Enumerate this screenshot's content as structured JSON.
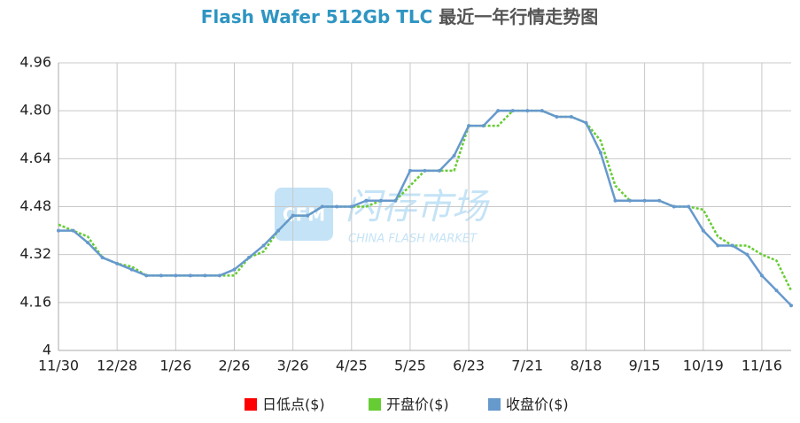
{
  "chart_data": {
    "type": "line",
    "title": "Flash Wafer 512Gb TLC",
    "subtitle": "最近一年行情走势图",
    "watermark": {
      "logo": "CFM",
      "name": "闪存市场",
      "name_en": "CHINA FLASH MARKET"
    },
    "categories": [
      "11/30",
      null,
      null,
      null,
      "12/28",
      null,
      null,
      null,
      "1/26",
      null,
      null,
      null,
      "2/26",
      null,
      null,
      null,
      "3/26",
      null,
      null,
      null,
      "4/25",
      null,
      null,
      null,
      "5/25",
      null,
      null,
      null,
      "6/23",
      null,
      null,
      null,
      "7/21",
      null,
      null,
      null,
      "8/18",
      null,
      null,
      null,
      "9/15",
      null,
      null,
      null,
      "10/19",
      null,
      null,
      null,
      "11/16",
      null,
      null
    ],
    "series": [
      {
        "name": "日低点($)",
        "color": "#ff0000",
        "values": [
          null,
          null,
          null,
          null,
          null,
          null,
          null,
          null,
          null,
          null,
          null,
          null,
          null,
          null,
          null,
          null,
          null,
          null,
          null,
          null,
          null,
          null,
          null,
          null,
          null,
          null,
          null,
          null,
          null,
          null,
          null,
          null,
          null,
          null,
          null,
          null,
          null,
          null,
          null,
          null,
          null,
          null,
          null,
          null,
          null,
          null,
          null,
          null,
          null,
          null,
          null
        ]
      },
      {
        "name": "开盘价($)",
        "color": "#66cc33",
        "values": [
          4.42,
          4.4,
          4.38,
          4.31,
          4.29,
          4.28,
          4.25,
          4.25,
          4.25,
          4.25,
          4.25,
          4.25,
          4.25,
          4.31,
          4.33,
          4.4,
          4.45,
          4.45,
          4.48,
          4.48,
          4.48,
          4.48,
          4.5,
          4.5,
          4.55,
          4.6,
          4.6,
          4.6,
          4.75,
          4.75,
          4.75,
          4.8,
          4.8,
          4.8,
          4.78,
          4.78,
          4.76,
          4.7,
          4.55,
          4.5,
          4.5,
          4.5,
          4.48,
          4.48,
          4.47,
          4.38,
          4.35,
          4.35,
          4.32,
          4.3,
          4.2
        ]
      },
      {
        "name": "收盘价($)",
        "color": "#6699cc",
        "values": [
          4.4,
          4.4,
          4.36,
          4.31,
          4.29,
          4.27,
          4.25,
          4.25,
          4.25,
          4.25,
          4.25,
          4.25,
          4.27,
          4.31,
          4.35,
          4.4,
          4.45,
          4.45,
          4.48,
          4.48,
          4.48,
          4.5,
          4.5,
          4.5,
          4.6,
          4.6,
          4.6,
          4.65,
          4.75,
          4.75,
          4.8,
          4.8,
          4.8,
          4.8,
          4.78,
          4.78,
          4.76,
          4.66,
          4.5,
          4.5,
          4.5,
          4.5,
          4.48,
          4.48,
          4.4,
          4.35,
          4.35,
          4.32,
          4.25,
          4.2,
          4.15
        ]
      }
    ],
    "ylim": [
      4,
      4.96
    ],
    "yticks": [
      4,
      4.16,
      4.32,
      4.48,
      4.64,
      {
        "value": 4.8,
        "label": "4.80"
      },
      4.96
    ],
    "grid": true,
    "legend": "bottom"
  }
}
